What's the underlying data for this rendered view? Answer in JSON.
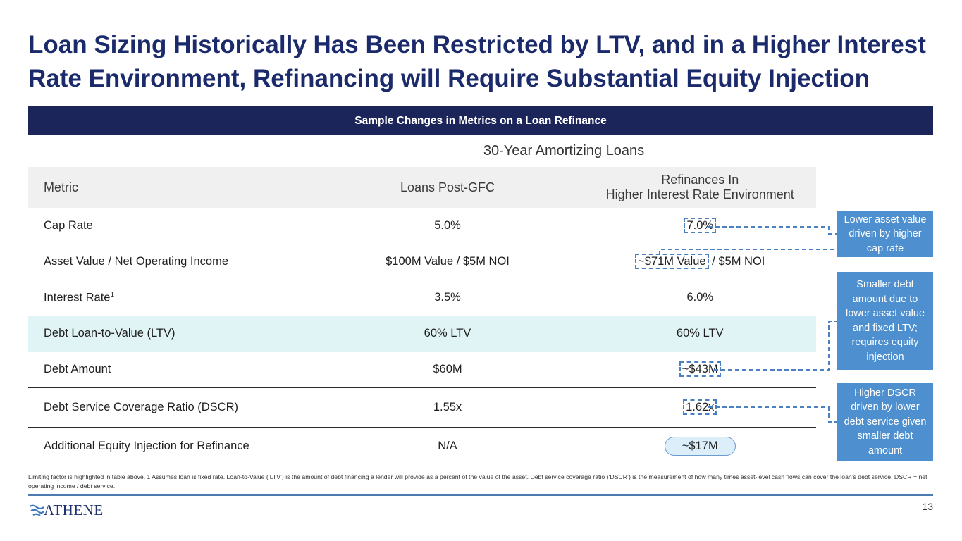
{
  "slide": {
    "title": "Loan Sizing Historically Has Been Restricted by LTV, and in a Higher Interest Rate Environment, Refinancing will Require Substantial Equity Injection",
    "banner": "Sample Changes in Metrics on a Loan Refinance",
    "subheading": "30-Year Amortizing Loans",
    "page_number": "13"
  },
  "table": {
    "headers": {
      "metric": "Metric",
      "post_gfc": "Loans Post-GFC",
      "refi_line1": "Refinances In",
      "refi_line2": "Higher Interest Rate Environment"
    },
    "rows": [
      {
        "metric": "Cap Rate",
        "post_gfc": "5.0%",
        "refi": "7.0%"
      },
      {
        "metric": "Asset Value / Net Operating Income",
        "post_gfc": "$100M Value / $5M NOI",
        "refi_a": "~$71M Value",
        "refi_b": " / $5M NOI"
      },
      {
        "metric": "Interest Rate",
        "metric_sup": "1",
        "post_gfc": "3.5%",
        "refi": "6.0%"
      },
      {
        "metric": "Debt Loan-to-Value (LTV)",
        "post_gfc": "60% LTV",
        "refi": "60% LTV"
      },
      {
        "metric": "Debt Amount",
        "post_gfc": "$60M",
        "refi": "~$43M"
      },
      {
        "metric": "Debt Service Coverage Ratio (DSCR)",
        "post_gfc": "1.55x",
        "refi": "1.62x"
      },
      {
        "metric": "Additional Equity Injection for Refinance",
        "post_gfc": "N/A",
        "refi": "~$17M"
      }
    ]
  },
  "callouts": {
    "cap_rate": "Lower asset value driven by higher cap rate",
    "debt": "Smaller debt amount due to lower asset value and fixed LTV; requires equity injection",
    "dscr": "Higher DSCR driven by lower debt service given smaller debt amount"
  },
  "footnote": "Limiting factor is highlighted in table above. 1 Assumes loan is fixed rate. Loan-to-Value (‘LTV’) is the amount of debt financing a lender will provide as a percent of the value of the asset. Debt service coverage ratio (‘DSCR’) is the measurement of how many times asset-level cash flows can cover the loan’s debt service. DSCR = net operating income / debt service.",
  "logo": {
    "text": "ATHENE"
  },
  "colors": {
    "navy": "#1b2a6b",
    "banner": "#1c2559",
    "callout": "#4e8fcf",
    "highlight": "#e1f4f5"
  }
}
